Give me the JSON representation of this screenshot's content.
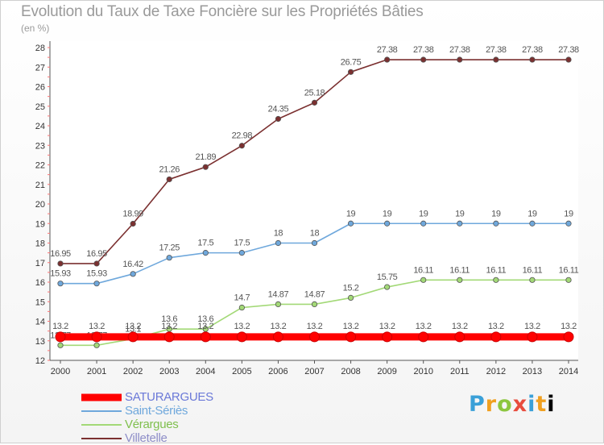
{
  "header": {
    "title": "Evolution du Taux de Taxe Foncière sur les Propriétés Bâties",
    "subtitle": "(en %)"
  },
  "logo": {
    "letters": [
      "P",
      "r",
      "o",
      "x",
      "i",
      "t",
      "i"
    ]
  },
  "chart_data": {
    "type": "line",
    "x": [
      "2000",
      "2001",
      "2002",
      "2003",
      "2004",
      "2005",
      "2006",
      "2007",
      "2008",
      "2009",
      "2010",
      "2011",
      "2012",
      "2013",
      "2014"
    ],
    "ylim": [
      12,
      28
    ],
    "yticks": [
      "12",
      "13",
      "14",
      "15",
      "16",
      "17",
      "18",
      "19",
      "20",
      "21",
      "22",
      "23",
      "24",
      "25",
      "26",
      "27",
      "28"
    ],
    "grid": false,
    "legend_position": "bottom-left",
    "series": [
      {
        "name": "SATURARGUES",
        "color": "#ff0000",
        "values": [
          13.2,
          13.2,
          13.2,
          13.2,
          13.2,
          13.2,
          13.2,
          13.2,
          13.2,
          13.2,
          13.2,
          13.2,
          13.2,
          13.2,
          13.2
        ],
        "labels": [
          "13.2",
          "13.2",
          "13.2",
          "13.2",
          "13.2",
          "13.2",
          "13.2",
          "13.2",
          "13.2",
          "13.2",
          "13.2",
          "13.2",
          "13.2",
          "13.2",
          "13.2"
        ]
      },
      {
        "name": "Saint-Sériès",
        "color": "#6fa8dc",
        "values": [
          15.93,
          15.93,
          16.42,
          17.25,
          17.5,
          17.5,
          18,
          18,
          19,
          19,
          19,
          19,
          19,
          19,
          19
        ],
        "labels": [
          "15.93",
          "15.93",
          "16.42",
          "17.25",
          "17.5",
          "17.5",
          "18",
          "18",
          "19",
          "19",
          "19",
          "19",
          "19",
          "19",
          "19"
        ]
      },
      {
        "name": "Vérargues",
        "color": "#a3d977",
        "values": [
          12.77,
          12.77,
          13.1,
          13.6,
          13.6,
          14.7,
          14.87,
          14.87,
          15.2,
          15.75,
          16.11,
          16.11,
          16.11,
          16.11,
          16.11
        ],
        "labels": [
          "12.77",
          "12.77",
          "13.1",
          "13.6",
          "13.6",
          "14.7",
          "14.87",
          "14.87",
          "15.2",
          "15.75",
          "16.11",
          "16.11",
          "16.11",
          "16.11",
          "16.11"
        ]
      },
      {
        "name": "Villetelle",
        "color": "#7b3030",
        "values": [
          16.95,
          16.95,
          18.99,
          21.26,
          21.89,
          22.98,
          24.35,
          25.18,
          26.75,
          27.38,
          27.38,
          27.38,
          27.38,
          27.38,
          27.38
        ],
        "labels": [
          "16.95",
          "16.95",
          "18.99",
          "21.26",
          "21.89",
          "22.98",
          "24.35",
          "25.18",
          "26.75",
          "27.38",
          "27.38",
          "27.38",
          "27.38",
          "27.38",
          "27.38"
        ]
      }
    ]
  }
}
